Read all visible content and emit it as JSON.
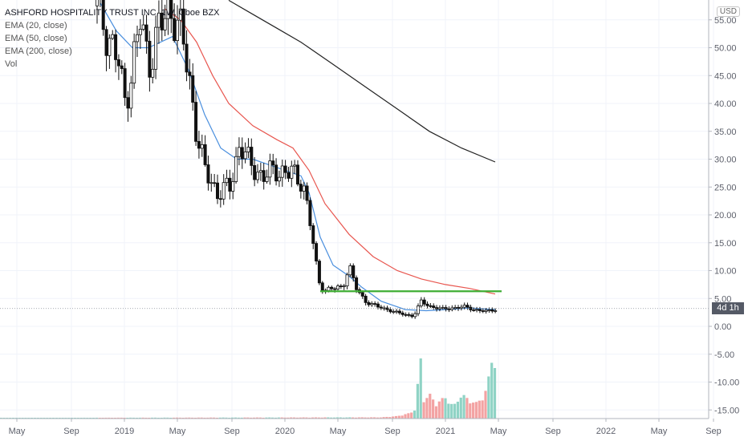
{
  "header": {
    "title": "ASHFORD HOSPITALITY TRUST INC, 1W, Cboe BZX",
    "indicators": [
      "EMA (20, close)",
      "EMA (50, close)",
      "EMA (200, close)",
      "Vol"
    ],
    "currency_badge": "USD",
    "last_price_label": "4d 1h"
  },
  "colors": {
    "ema20": "#4a8fde",
    "ema50": "#e8564f",
    "ema200": "#222222",
    "support_line": "#3fae35",
    "candle": "#111111",
    "vol_up": "#8fd3c5",
    "vol_down": "#f3a3a3",
    "axis_text": "#5d606b",
    "grid": "#f0f3fa",
    "axis_line": "#b2b5be"
  },
  "chart_data": {
    "type": "candlestick",
    "yticks": [
      55,
      50,
      45,
      40,
      35,
      30,
      25,
      20,
      15,
      10,
      5,
      0,
      -5,
      -10,
      -15
    ],
    "ytick_labels": [
      "55.00",
      "50.00",
      "45.00",
      "40.00",
      "35.00",
      "30.00",
      "25.00",
      "20.00",
      "15.00",
      "10.00",
      "5.00",
      "0.00",
      "-5.00",
      "-10.00",
      "-15.00"
    ],
    "xticks": [
      {
        "label": "May",
        "t": 2018.33
      },
      {
        "label": "Sep",
        "t": 2018.67
      },
      {
        "label": "2019",
        "t": 2019.0
      },
      {
        "label": "May",
        "t": 2019.33
      },
      {
        "label": "Sep",
        "t": 2019.67
      },
      {
        "label": "2020",
        "t": 2020.0
      },
      {
        "label": "May",
        "t": 2020.33
      },
      {
        "label": "Sep",
        "t": 2020.67
      },
      {
        "label": "2021",
        "t": 2021.0
      },
      {
        "label": "May",
        "t": 2021.33
      },
      {
        "label": "Sep",
        "t": 2021.67
      },
      {
        "label": "2022",
        "t": 2022.0
      },
      {
        "label": "May",
        "t": 2022.33
      },
      {
        "label": "Sep",
        "t": 2022.67
      }
    ],
    "price_keypoints": [
      [
        2018.83,
        57.5
      ],
      [
        2018.9,
        52
      ],
      [
        2018.96,
        48
      ],
      [
        2019.0,
        40
      ],
      [
        2019.04,
        45
      ],
      [
        2019.1,
        55
      ],
      [
        2019.15,
        47
      ],
      [
        2019.22,
        54
      ],
      [
        2019.3,
        57
      ],
      [
        2019.36,
        52
      ],
      [
        2019.4,
        45
      ],
      [
        2019.45,
        35
      ],
      [
        2019.5,
        28
      ],
      [
        2019.58,
        24
      ],
      [
        2019.66,
        25
      ],
      [
        2019.72,
        33
      ],
      [
        2019.78,
        29
      ],
      [
        2019.86,
        27
      ],
      [
        2019.95,
        28
      ],
      [
        2020.04,
        27.5
      ],
      [
        2020.11,
        26
      ],
      [
        2020.15,
        20
      ],
      [
        2020.19,
        12
      ],
      [
        2020.21,
        8
      ],
      [
        2020.25,
        6.5
      ],
      [
        2020.3,
        6.8
      ],
      [
        2020.36,
        7
      ],
      [
        2020.4,
        11
      ],
      [
        2020.44,
        7
      ],
      [
        2020.5,
        4.5
      ],
      [
        2020.58,
        3.5
      ],
      [
        2020.64,
        3
      ],
      [
        2020.72,
        2.3
      ],
      [
        2020.8,
        1.8
      ],
      [
        2020.85,
        4.5
      ],
      [
        2020.9,
        3.6
      ],
      [
        2020.98,
        3.1
      ],
      [
        2021.05,
        3.3
      ],
      [
        2021.12,
        3.5
      ],
      [
        2021.18,
        3.0
      ],
      [
        2021.25,
        2.7
      ],
      [
        2021.31,
        3.0
      ]
    ],
    "ema20": [
      [
        2018.85,
        58
      ],
      [
        2018.95,
        53
      ],
      [
        2019.05,
        50
      ],
      [
        2019.15,
        50
      ],
      [
        2019.3,
        52
      ],
      [
        2019.4,
        46
      ],
      [
        2019.5,
        38
      ],
      [
        2019.6,
        32
      ],
      [
        2019.7,
        30
      ],
      [
        2019.8,
        30
      ],
      [
        2019.95,
        28.5
      ],
      [
        2020.1,
        27
      ],
      [
        2020.15,
        24
      ],
      [
        2020.22,
        16
      ],
      [
        2020.3,
        11
      ],
      [
        2020.4,
        9
      ],
      [
        2020.48,
        7
      ],
      [
        2020.6,
        4.5
      ],
      [
        2020.75,
        3
      ],
      [
        2020.88,
        2.8
      ],
      [
        2021.0,
        3
      ],
      [
        2021.15,
        3.3
      ],
      [
        2021.31,
        3
      ]
    ],
    "ema50": [
      [
        2019.25,
        57
      ],
      [
        2019.35,
        55
      ],
      [
        2019.45,
        51
      ],
      [
        2019.55,
        45
      ],
      [
        2019.65,
        40
      ],
      [
        2019.8,
        36
      ],
      [
        2019.95,
        33.5
      ],
      [
        2020.05,
        32
      ],
      [
        2020.15,
        28
      ],
      [
        2020.25,
        22
      ],
      [
        2020.4,
        16.5
      ],
      [
        2020.55,
        12.5
      ],
      [
        2020.7,
        10
      ],
      [
        2020.85,
        8.5
      ],
      [
        2021.0,
        7.5
      ],
      [
        2021.15,
        6.8
      ],
      [
        2021.31,
        5.8
      ]
    ],
    "ema200": [
      [
        2019.65,
        58.5
      ],
      [
        2019.8,
        56
      ],
      [
        2019.95,
        53.5
      ],
      [
        2020.1,
        51
      ],
      [
        2020.3,
        47
      ],
      [
        2020.5,
        43
      ],
      [
        2020.7,
        39
      ],
      [
        2020.9,
        35
      ],
      [
        2021.1,
        32
      ],
      [
        2021.31,
        29.5
      ]
    ],
    "support_line": {
      "from": 2020.22,
      "to": 2021.35,
      "value": 6.3
    },
    "volume_keypoints": [
      [
        2018.0,
        0.2
      ],
      [
        2020.6,
        0.4
      ],
      [
        2020.7,
        0.8
      ],
      [
        2020.78,
        1.8
      ],
      [
        2020.82,
        3.5
      ],
      [
        2020.84,
        25
      ],
      [
        2020.86,
        6
      ],
      [
        2020.9,
        8
      ],
      [
        2020.94,
        5
      ],
      [
        2021.0,
        7
      ],
      [
        2021.05,
        4
      ],
      [
        2021.1,
        8
      ],
      [
        2021.15,
        6
      ],
      [
        2021.2,
        5
      ],
      [
        2021.26,
        10
      ],
      [
        2021.29,
        20
      ],
      [
        2021.3,
        28
      ],
      [
        2021.31,
        17
      ]
    ],
    "last_price": 3.2
  }
}
